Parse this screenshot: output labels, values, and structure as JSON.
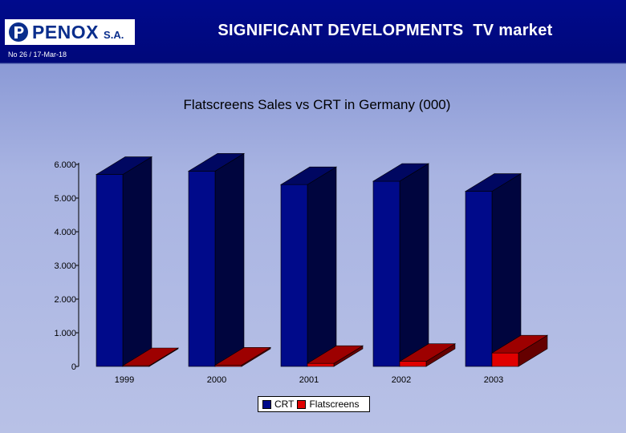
{
  "header": {
    "logo_text": "PENOX",
    "logo_suffix": "S.A.",
    "title": "SIGNIFICANT DEVELOPMENTS  TV market",
    "doc_ref": "No 26 / 17-Mar-18"
  },
  "colors": {
    "crt": "#000a8a",
    "flatscreens": "#e00000"
  },
  "chart_data": {
    "type": "bar",
    "title": "Flatscreens Sales vs CRT in Germany (000)",
    "categories": [
      "1999",
      "2000",
      "2001",
      "2002",
      "2003"
    ],
    "series": [
      {
        "name": "CRT",
        "values": [
          5700,
          5800,
          5400,
          5500,
          5200
        ]
      },
      {
        "name": "Flatscreens",
        "values": [
          20,
          40,
          90,
          150,
          400
        ]
      }
    ],
    "ylim": [
      0,
      6000
    ],
    "yticks": [
      0,
      1000,
      2000,
      3000,
      4000,
      5000,
      6000
    ],
    "ytick_labels": [
      "0",
      "1.000",
      "2.000",
      "3.000",
      "4.000",
      "5.000",
      "6.000"
    ],
    "legend_position": "bottom",
    "grid": false
  },
  "legend": {
    "items": [
      "CRT",
      "Flatscreens"
    ]
  }
}
